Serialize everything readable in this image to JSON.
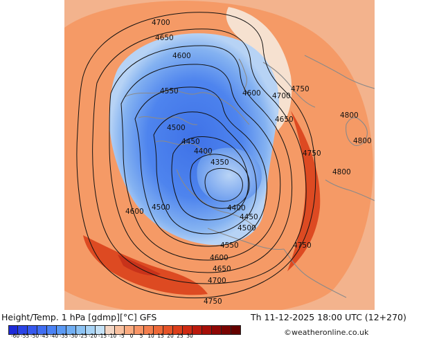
{
  "footer": {
    "title": "Height/Temp. 1 hPa [gdmp][°C] GFS",
    "datetime": "Th 11-12-2025 18:00 UTC (12+270)",
    "credit": "©weatheronline.co.uk"
  },
  "colorbar": {
    "colors": [
      "#1d2ad8",
      "#2a44e6",
      "#3558ee",
      "#3f6df2",
      "#4a82f5",
      "#5a99f4",
      "#70aef3",
      "#8cc3f4",
      "#a8d4f6",
      "#c5e2f7",
      "#f3d6c4",
      "#f9c1a0",
      "#fbab80",
      "#f99566",
      "#f47f4e",
      "#ee6938",
      "#e65327",
      "#dc3e1a",
      "#cf2a12",
      "#bb1a0d",
      "#a60f09",
      "#8f0705",
      "#7a0402",
      "#650200"
    ],
    "ticks": [
      "-60",
      "-55",
      "-50",
      "-45",
      "-40",
      "-35",
      "-30",
      "-25",
      "-20",
      "-15",
      "-10",
      "-5",
      "0",
      "5",
      "10",
      "15",
      "20",
      "25",
      "30"
    ]
  },
  "map": {
    "colors": {
      "warm_edge": "#f3b38d",
      "warm": "#f59a66",
      "warm_deep": "#ee7c47",
      "hot": "#dd4a22",
      "hot_core": "#c8321a",
      "cool_fringe": "#f6e1d0",
      "pale_blue": "#c8dcf4",
      "light_blue": "#93bdf1",
      "mid_blue": "#5d92ec",
      "deep_blue": "#3f72e7",
      "coast": "#8a8a8a"
    },
    "contour_labels": [
      {
        "id": "4700-a",
        "text": "4700"
      },
      {
        "id": "4650-a",
        "text": "4650"
      },
      {
        "id": "4600-a",
        "text": "4600"
      },
      {
        "id": "4550-a",
        "text": "4550"
      },
      {
        "id": "4600-b",
        "text": "4600"
      },
      {
        "id": "4700-b",
        "text": "4700"
      },
      {
        "id": "4750-a",
        "text": "4750"
      },
      {
        "id": "4650-b",
        "text": "4650"
      },
      {
        "id": "4800-a",
        "text": "4800"
      },
      {
        "id": "4800-b",
        "text": "4800"
      },
      {
        "id": "4500-a",
        "text": "4500"
      },
      {
        "id": "4450-a",
        "text": "4450"
      },
      {
        "id": "4400-a",
        "text": "4400"
      },
      {
        "id": "4350-a",
        "text": "4350"
      },
      {
        "id": "4750-b",
        "text": "4750"
      },
      {
        "id": "4800-c",
        "text": "4800"
      },
      {
        "id": "4600-c",
        "text": "4600"
      },
      {
        "id": "4500-b",
        "text": "4500"
      },
      {
        "id": "4400-b",
        "text": "4400"
      },
      {
        "id": "4450-b",
        "text": "4450"
      },
      {
        "id": "4500-c",
        "text": "4500"
      },
      {
        "id": "4550-b",
        "text": "4550"
      },
      {
        "id": "4750-c",
        "text": "4750"
      },
      {
        "id": "4600-d",
        "text": "4600"
      },
      {
        "id": "4650-c",
        "text": "4650"
      },
      {
        "id": "4700-c",
        "text": "4700"
      },
      {
        "id": "4750-d",
        "text": "4750"
      }
    ]
  }
}
